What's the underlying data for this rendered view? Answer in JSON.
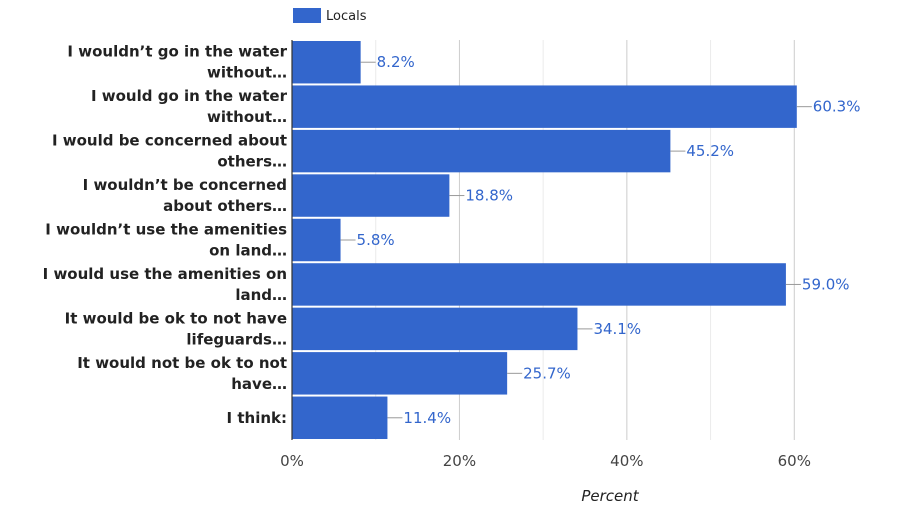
{
  "chart_data": {
    "type": "bar",
    "orientation": "horizontal",
    "categories": [
      [
        "I wouldn’t go in the water",
        "without…"
      ],
      [
        "I would go in the water",
        "without…"
      ],
      [
        "I would be concerned about",
        "others…"
      ],
      [
        "I wouldn’t be concerned",
        "about others…"
      ],
      [
        "I wouldn’t use the amenities",
        "on land…"
      ],
      [
        "I would use the amenities on",
        "land…"
      ],
      [
        "It would be ok to not have",
        "lifeguards…"
      ],
      [
        "It would not be ok to not",
        "have…"
      ],
      [
        "I think:"
      ]
    ],
    "series": [
      {
        "name": "Locals",
        "color": "#3366cc",
        "values": [
          8.2,
          60.3,
          45.2,
          18.8,
          5.8,
          59.0,
          34.1,
          25.7,
          11.4
        ],
        "labels": [
          "8.2%",
          "60.3%",
          "45.2%",
          "18.8%",
          "5.8%",
          "59.0%",
          "34.1%",
          "25.7%",
          "11.4%"
        ]
      }
    ],
    "xlabel": "Percent",
    "xlim": [
      0,
      70
    ],
    "xticks": [
      0,
      20,
      40,
      60
    ],
    "xtick_labels": [
      "0%",
      "20%",
      "40%",
      "60%"
    ],
    "grid": true,
    "legend_position": "top-left"
  }
}
